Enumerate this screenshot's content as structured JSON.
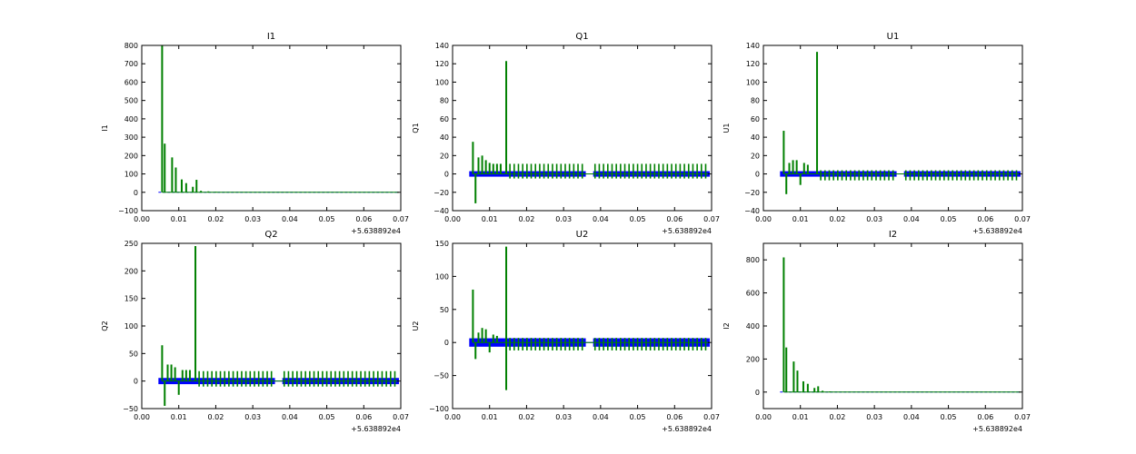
{
  "chart_data": [
    {
      "type": "line",
      "title": "I1",
      "ylabel": "I1",
      "xlabel": "",
      "xlim": [
        0.0,
        0.07
      ],
      "ylim": [
        -100,
        800
      ],
      "xticks": [
        "0.00",
        "0.01",
        "0.02",
        "0.03",
        "0.04",
        "0.05",
        "0.06",
        "0.07"
      ],
      "yticks": [
        "−100",
        "0",
        "100",
        "200",
        "300",
        "400",
        "500",
        "600",
        "700",
        "800"
      ],
      "x_offset_label": "+5.638892e4",
      "series": [
        {
          "name": "blue",
          "color": "#0000ff",
          "kind": "baseline",
          "x": [
            0.0045,
            0.0695
          ],
          "y": [
            0,
            0
          ]
        },
        {
          "name": "green",
          "color": "#008000",
          "kind": "spikes",
          "x": [
            0.0055,
            0.0062,
            0.0082,
            0.0092,
            0.0108,
            0.012,
            0.0138,
            0.0148,
            0.016,
            0.018,
            0.02
          ],
          "y": [
            800,
            265,
            190,
            135,
            70,
            50,
            30,
            68,
            8,
            5,
            3
          ]
        }
      ]
    },
    {
      "type": "line",
      "title": "Q1",
      "ylabel": "Q1",
      "xlabel": "",
      "xlim": [
        0.0,
        0.07
      ],
      "ylim": [
        -40,
        140
      ],
      "xticks": [
        "0.00",
        "0.01",
        "0.02",
        "0.03",
        "0.04",
        "0.05",
        "0.06",
        "0.07"
      ],
      "yticks": [
        "−40",
        "−20",
        "0",
        "20",
        "40",
        "60",
        "80",
        "100",
        "120",
        "140"
      ],
      "x_offset_label": "+5.638892e4",
      "series": [
        {
          "name": "blue",
          "color": "#0000ff",
          "kind": "band",
          "x": [
            0.0045,
            0.0695
          ],
          "y": [
            -2,
            2
          ],
          "gap": [
            0.036,
            0.038
          ]
        },
        {
          "name": "green",
          "color": "#008000",
          "kind": "spikes",
          "x": [
            0.0055,
            0.0062,
            0.007,
            0.008,
            0.009,
            0.01,
            0.011,
            0.012,
            0.013,
            0.0145
          ],
          "y": [
            35,
            -32,
            18,
            20,
            15,
            12,
            11,
            11,
            11,
            123
          ],
          "regular_amp": 11,
          "regular_low": -5
        }
      ]
    },
    {
      "type": "line",
      "title": "U1",
      "ylabel": "U1",
      "xlabel": "",
      "xlim": [
        0.0,
        0.07
      ],
      "ylim": [
        -40,
        140
      ],
      "xticks": [
        "0.00",
        "0.01",
        "0.02",
        "0.03",
        "0.04",
        "0.05",
        "0.06",
        "0.07"
      ],
      "yticks": [
        "−40",
        "−20",
        "0",
        "20",
        "40",
        "60",
        "80",
        "100",
        "120",
        "140"
      ],
      "x_offset_label": "+5.638892e4",
      "series": [
        {
          "name": "blue",
          "color": "#0000ff",
          "kind": "band",
          "x": [
            0.0045,
            0.0695
          ],
          "y": [
            -2,
            2
          ],
          "gap": [
            0.036,
            0.038
          ]
        },
        {
          "name": "green",
          "color": "#008000",
          "kind": "spikes",
          "x": [
            0.0055,
            0.0062,
            0.007,
            0.008,
            0.009,
            0.01,
            0.011,
            0.012,
            0.0145
          ],
          "y": [
            47,
            -22,
            12,
            15,
            15,
            -12,
            12,
            10,
            133
          ],
          "regular_amp": 4,
          "regular_low": -7
        }
      ]
    },
    {
      "type": "line",
      "title": "Q2",
      "ylabel": "Q2",
      "xlabel": "",
      "xlim": [
        0.0,
        0.07
      ],
      "ylim": [
        -50,
        250
      ],
      "xticks": [
        "0.00",
        "0.01",
        "0.02",
        "0.03",
        "0.04",
        "0.05",
        "0.06",
        "0.07"
      ],
      "yticks": [
        "−50",
        "0",
        "50",
        "100",
        "150",
        "200",
        "250"
      ],
      "x_offset_label": "+5.638892e4",
      "series": [
        {
          "name": "blue",
          "color": "#0000ff",
          "kind": "band",
          "x": [
            0.0045,
            0.0695
          ],
          "y": [
            -4,
            4
          ],
          "gap": [
            0.036,
            0.038
          ]
        },
        {
          "name": "green",
          "color": "#008000",
          "kind": "spikes",
          "x": [
            0.0055,
            0.0062,
            0.007,
            0.008,
            0.009,
            0.01,
            0.011,
            0.012,
            0.013,
            0.0145
          ],
          "y": [
            65,
            -45,
            30,
            30,
            25,
            -25,
            20,
            20,
            20,
            245
          ],
          "regular_amp": 18,
          "regular_low": -10
        }
      ]
    },
    {
      "type": "line",
      "title": "U2",
      "ylabel": "U2",
      "xlabel": "",
      "xlim": [
        0.0,
        0.07
      ],
      "ylim": [
        -100,
        150
      ],
      "xticks": [
        "0.00",
        "0.01",
        "0.02",
        "0.03",
        "0.04",
        "0.05",
        "0.06",
        "0.07"
      ],
      "yticks": [
        "−100",
        "−50",
        "0",
        "50",
        "100",
        "150"
      ],
      "x_offset_label": "+5.638892e4",
      "series": [
        {
          "name": "blue",
          "color": "#0000ff",
          "kind": "band",
          "x": [
            0.0045,
            0.0695
          ],
          "y": [
            -5,
            5
          ],
          "gap": [
            0.036,
            0.038
          ]
        },
        {
          "name": "green",
          "color": "#008000",
          "kind": "spikes",
          "x": [
            0.0055,
            0.0062,
            0.007,
            0.008,
            0.009,
            0.01,
            0.011,
            0.012,
            0.0145
          ],
          "y": [
            80,
            -25,
            15,
            22,
            20,
            -15,
            12,
            10,
            145
          ],
          "regular_amp": 7,
          "regular_low": -12,
          "dip": [
            0.0145,
            -72
          ]
        }
      ]
    },
    {
      "type": "line",
      "title": "I2",
      "ylabel": "I2",
      "xlabel": "",
      "xlim": [
        0.0,
        0.07
      ],
      "ylim": [
        -100,
        900
      ],
      "xticks": [
        "0.00",
        "0.01",
        "0.02",
        "0.03",
        "0.04",
        "0.05",
        "0.06",
        "0.07"
      ],
      "yticks": [
        "0",
        "200",
        "400",
        "600",
        "800"
      ],
      "x_offset_label": "+5.638892e4",
      "series": [
        {
          "name": "blue",
          "color": "#0000ff",
          "kind": "baseline",
          "x": [
            0.0045,
            0.0695
          ],
          "y": [
            0,
            0
          ]
        },
        {
          "name": "green",
          "color": "#008000",
          "kind": "spikes",
          "x": [
            0.0055,
            0.0062,
            0.0082,
            0.0092,
            0.0108,
            0.012,
            0.0138,
            0.0148,
            0.016,
            0.018
          ],
          "y": [
            815,
            270,
            185,
            130,
            65,
            50,
            25,
            35,
            8,
            4
          ]
        }
      ]
    }
  ]
}
